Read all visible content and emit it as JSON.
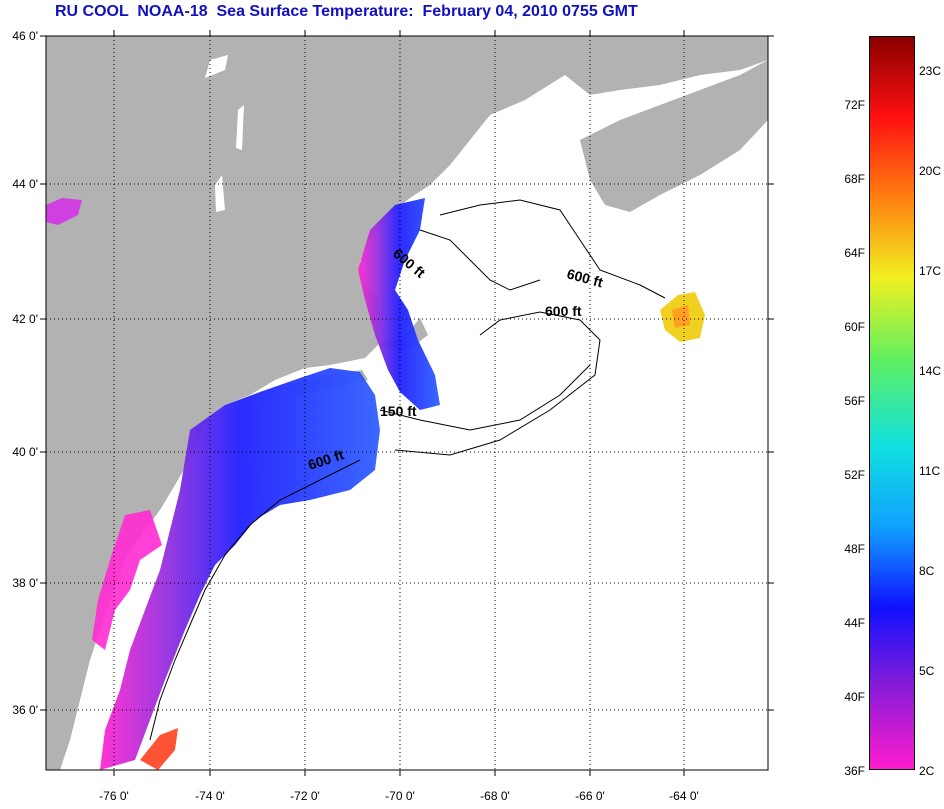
{
  "title": "RU COOL  NOAA-18  Sea Surface Temperature:  February 04, 2010 0755 GMT",
  "latitude_labels": [
    "46 0'",
    "44 0'",
    "42 0'",
    "40 0'",
    "38 0'",
    "36 0'"
  ],
  "longitude_labels": [
    "-76 0'",
    "-74 0'",
    "-72 0'",
    "-70 0'",
    "-68 0'",
    "-66 0'",
    "-64 0'"
  ],
  "contour_labels": [
    "600 ft",
    "600 ft",
    "600 ft",
    "150 ft",
    "600 ft"
  ],
  "colorbar": {
    "fahrenheit_labels": [
      "72F",
      "68F",
      "64F",
      "60F",
      "56F",
      "52F",
      "48F",
      "44F",
      "40F",
      "36F"
    ],
    "celsius_labels": [
      "23C",
      "20C",
      "17C",
      "14C",
      "11C",
      "8C",
      "5C",
      "2C"
    ],
    "colors": [
      "#ff1ccf",
      "#8a1cd6",
      "#1010ff",
      "#10a0ff",
      "#10e0e0",
      "#60f060",
      "#f0f020",
      "#ff8010",
      "#ff1010",
      "#8a0000"
    ]
  },
  "colors": {
    "land": "#b2b2b2",
    "ocean": "#ffffff",
    "title": "#1010c0"
  }
}
